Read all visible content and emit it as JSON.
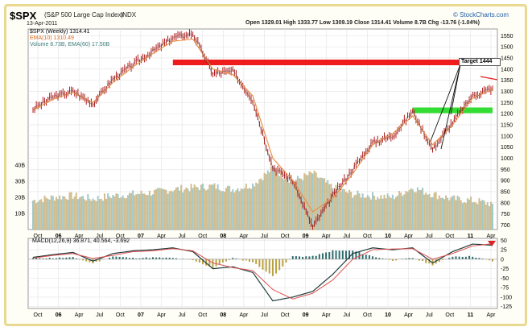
{
  "header": {
    "symbol": "$SPX",
    "name": "(S&P 500 Large Cap Index)",
    "exchange": "INDX",
    "date": "13-Apr-2011",
    "quote": "Open 1329.01  High 1333.77  Low 1309.19  Close 1314.41  Volume 8.7B  Chg -13.76 (-1.04%)",
    "brand": "© StockCharts.com"
  },
  "legend": {
    "price": "$SPX (Weekly) 1314.41",
    "ema": "EMA(10) 1310.49",
    "volume": "Volume 8.73B, EMA(60) 17.50B"
  },
  "macd_label": "MACD(12,26,9) 36.871, 40.564, -3.692",
  "annotation": "Target 1444",
  "colors": {
    "price_bar": "#b31d1d",
    "ema": "#e8914a",
    "volume_bar": "#c9b27a",
    "volume_alt": "#8fbfc3",
    "resistance": "#ee1c1c",
    "support": "#33dd33",
    "macd": "#1e3a3a",
    "signal": "#e05050",
    "histogram": "#b8a040",
    "grid": "#e3e3e3",
    "frame": "#e8d890"
  },
  "chart_data": [
    {
      "type": "line",
      "panel": "price",
      "x_tick_labels": [
        "Oct",
        "06",
        "Apr",
        "Jul",
        "Oct",
        "07",
        "Apr",
        "Jul",
        "Oct",
        "08",
        "Apr",
        "Jul",
        "Oct",
        "09",
        "Apr",
        "Jul",
        "Oct",
        "10",
        "Apr",
        "Jul",
        "Oct",
        "11",
        "Apr"
      ],
      "y_tick_labels": [
        "1550",
        "1500",
        "1450",
        "1400",
        "1350",
        "1300",
        "1250",
        "1200",
        "1150",
        "1100",
        "1050",
        "1000",
        "950",
        "900",
        "850",
        "800",
        "750",
        "700"
      ],
      "ylim": [
        680,
        1580
      ],
      "volume_tick_labels": [
        "40B",
        "30B",
        "20B",
        "10B"
      ],
      "volume_ylim": [
        0,
        45
      ],
      "x": [
        "Oct-05",
        "Jan-06",
        "Apr-06",
        "Jul-06",
        "Oct-06",
        "Jan-07",
        "Apr-07",
        "Jul-07",
        "Oct-07",
        "Jan-08",
        "Apr-08",
        "Jul-08",
        "Oct-08",
        "Jan-09",
        "Mar-09",
        "Apr-09",
        "Jul-09",
        "Oct-09",
        "Jan-10",
        "Apr-10",
        "Jul-10",
        "Oct-10",
        "Jan-11",
        "Apr-11"
      ],
      "series": [
        {
          "name": "$SPX (Weekly)",
          "values": [
            1220,
            1275,
            1300,
            1245,
            1355,
            1420,
            1480,
            1540,
            1560,
            1380,
            1390,
            1260,
            960,
            900,
            690,
            830,
            950,
            1070,
            1100,
            1210,
            1040,
            1160,
            1280,
            1314
          ]
        },
        {
          "name": "EMA(10)",
          "values": [
            1215,
            1265,
            1295,
            1250,
            1340,
            1410,
            1470,
            1525,
            1535,
            1400,
            1375,
            1280,
            1000,
            900,
            760,
            820,
            930,
            1060,
            1110,
            1190,
            1060,
            1150,
            1270,
            1310
          ]
        }
      ],
      "volume_values": [
        18,
        20,
        21,
        19,
        21,
        22,
        23,
        25,
        26,
        27,
        25,
        28,
        38,
        30,
        35,
        26,
        22,
        21,
        20,
        26,
        22,
        19,
        18,
        16
      ],
      "horizontal_lines": [
        {
          "name": "resistance",
          "value": 1430,
          "x_from": "Jul-07",
          "x_to": "Apr-11"
        },
        {
          "name": "support",
          "value": 1215,
          "x_from": "Apr-10",
          "x_to": "Apr-11"
        }
      ]
    },
    {
      "type": "line",
      "panel": "macd",
      "y_tick_labels": [
        "50",
        "25",
        "0",
        "-25",
        "-50",
        "-75",
        "-100",
        "-125"
      ],
      "ylim": [
        -130,
        55
      ],
      "x": [
        "Oct-05",
        "Jan-06",
        "Apr-06",
        "Jul-06",
        "Oct-06",
        "Jan-07",
        "Apr-07",
        "Jul-07",
        "Oct-07",
        "Jan-08",
        "Apr-08",
        "Jul-08",
        "Oct-08",
        "Jan-09",
        "Mar-09",
        "Apr-09",
        "Jul-09",
        "Oct-09",
        "Jan-10",
        "Apr-10",
        "Jul-10",
        "Oct-10",
        "Jan-11",
        "Apr-11"
      ],
      "series": [
        {
          "name": "MACD",
          "values": [
            5,
            12,
            18,
            -5,
            15,
            22,
            25,
            30,
            20,
            -25,
            -20,
            -35,
            -110,
            -100,
            -85,
            -40,
            15,
            30,
            25,
            30,
            -10,
            20,
            40,
            37
          ]
        },
        {
          "name": "Signal",
          "values": [
            3,
            10,
            15,
            2,
            10,
            20,
            22,
            28,
            22,
            -10,
            -22,
            -30,
            -80,
            -105,
            -90,
            -55,
            0,
            25,
            27,
            28,
            0,
            15,
            35,
            41
          ]
        }
      ]
    }
  ]
}
